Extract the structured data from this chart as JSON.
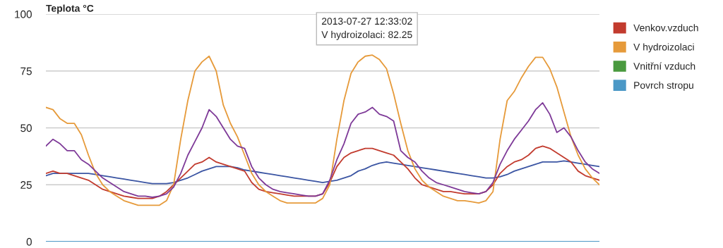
{
  "chart_data": {
    "type": "line",
    "title": "Teplota °C",
    "categories": [
      null,
      null,
      null,
      null,
      null,
      null,
      null,
      null,
      null,
      null,
      null,
      null,
      null,
      null,
      null,
      null,
      null,
      null,
      null,
      null,
      null,
      null,
      null,
      null,
      null,
      null,
      null,
      null,
      null,
      null,
      null,
      null,
      null,
      null,
      null,
      null,
      null,
      null,
      null,
      null,
      null,
      null,
      null,
      null,
      null,
      null,
      null,
      null,
      null,
      null,
      null,
      null,
      null,
      null,
      null,
      null,
      null,
      null,
      null,
      null,
      null,
      null,
      null,
      null,
      null,
      null,
      null,
      null,
      null,
      null,
      null,
      null,
      null,
      null,
      null,
      null,
      null,
      null,
      null
    ],
    "series": [
      {
        "color": "#3b55a3",
        "values": [
          29,
          30,
          30,
          30,
          30,
          30,
          30,
          29.5,
          29,
          28.5,
          28,
          27.5,
          27,
          26.5,
          26,
          25.5,
          25.5,
          25.5,
          26,
          27,
          28,
          29.5,
          31,
          32,
          33,
          33,
          33,
          32.5,
          31.5,
          31,
          30.5,
          30,
          29.5,
          29,
          28.5,
          28,
          27.5,
          27,
          26.5,
          26,
          26.5,
          27,
          28,
          29,
          31,
          32,
          33.5,
          34.5,
          35,
          34.5,
          34,
          33.5,
          33,
          32.5,
          32,
          31.5,
          31,
          30.5,
          30,
          29.5,
          29,
          28.5,
          28,
          28,
          28.5,
          29.5,
          31,
          32,
          33,
          34,
          35,
          35,
          35,
          35.5,
          35,
          34.5,
          34,
          33.5,
          33
        ]
      },
      {
        "name": "Venkov.vzduch",
        "color": "#c23b2e",
        "values": [
          30,
          31,
          30,
          30,
          29,
          28,
          27,
          25,
          23,
          22,
          21,
          20,
          19.5,
          19,
          19,
          19,
          20,
          22,
          25,
          28,
          31,
          34,
          35,
          37,
          35,
          34,
          33,
          32,
          31,
          26,
          23,
          22,
          21.5,
          21,
          20.5,
          20,
          20,
          20,
          20,
          21,
          26,
          33,
          37,
          39,
          40,
          41,
          41,
          40,
          39,
          38,
          35,
          32,
          28,
          25,
          24,
          23,
          22,
          22,
          21.5,
          21,
          21,
          21,
          22,
          25,
          30,
          33,
          35,
          36,
          38,
          41,
          42,
          41,
          39,
          37,
          35,
          31,
          29,
          28,
          27
        ]
      },
      {
        "name": "V hydroizolaci",
        "color": "#e69a3a",
        "values": [
          59,
          58,
          54,
          52,
          52,
          47,
          38,
          30,
          25,
          22,
          20,
          18,
          17,
          16,
          16,
          16,
          16,
          18,
          25,
          45,
          62,
          75,
          79,
          81.5,
          75,
          60,
          52,
          46,
          38,
          30,
          25,
          22,
          20,
          18,
          17,
          17,
          17,
          17,
          17,
          19,
          25,
          45,
          62,
          74,
          79,
          81.5,
          82,
          80,
          76,
          65,
          52,
          40,
          32,
          27,
          24,
          22,
          20,
          19,
          18,
          18,
          17.5,
          17,
          18,
          22,
          45,
          62,
          66,
          72,
          77,
          81,
          81,
          76,
          68,
          57,
          46,
          38,
          32,
          28,
          25
        ]
      },
      {
        "name": "Vnitřní vzduch",
        "color": "#4a9a3f",
        "values": [
          null,
          null,
          null,
          null,
          null,
          null,
          null,
          null,
          null,
          null,
          null,
          null,
          null,
          null,
          null,
          null,
          null,
          null,
          null,
          null,
          null,
          null,
          null,
          null,
          null,
          null,
          null,
          null,
          null,
          null,
          null,
          null,
          null,
          null,
          null,
          null,
          null,
          null,
          null,
          null,
          null,
          null,
          null,
          null,
          null,
          null,
          null,
          null,
          null,
          null,
          null,
          null,
          null,
          null,
          null,
          null,
          null,
          null,
          null,
          null,
          null,
          null,
          null,
          null,
          null,
          null,
          null,
          null,
          null,
          null,
          null,
          null,
          null,
          null,
          null,
          null,
          null,
          null,
          null
        ]
      },
      {
        "color": "#7e3a98",
        "values": [
          42,
          45,
          43,
          40,
          40,
          36,
          34,
          31,
          28,
          26,
          24,
          22,
          21,
          20,
          20,
          19.5,
          20,
          21,
          24,
          30,
          38,
          44,
          50,
          58,
          55,
          50,
          45,
          42,
          41,
          33,
          28,
          25,
          23,
          22,
          21.5,
          21,
          20.5,
          20,
          20,
          21,
          27,
          36,
          43,
          52,
          56,
          57,
          59,
          56,
          55,
          53,
          40,
          37,
          35,
          31,
          28,
          26,
          25,
          24,
          23,
          22,
          21.5,
          21,
          22,
          26,
          34,
          40,
          45,
          49,
          53,
          58,
          61,
          56,
          48,
          50,
          46,
          40,
          35,
          32,
          30
        ]
      },
      {
        "name": "Povrch stropu",
        "color": "#4b98c6",
        "values": [
          0,
          0,
          0,
          0,
          0,
          0,
          0,
          0,
          0,
          0,
          0,
          0,
          0,
          0,
          0,
          0,
          0,
          0,
          0,
          0,
          0,
          0,
          0,
          0,
          0,
          0,
          0,
          0,
          0,
          0,
          0,
          0,
          0,
          0,
          0,
          0,
          0,
          0,
          0,
          0,
          0,
          0,
          0,
          0,
          0,
          0,
          0,
          0,
          0,
          0,
          0,
          0,
          0,
          0,
          0,
          0,
          0,
          0,
          0,
          0,
          0,
          0,
          0,
          0,
          0,
          0,
          0,
          0,
          0,
          0,
          0,
          0,
          0,
          0,
          0,
          0,
          0,
          0,
          0
        ]
      }
    ],
    "ylim": [
      0,
      100
    ],
    "yticks": [
      0,
      25,
      50,
      75,
      100
    ],
    "grid": "y",
    "legend": "right",
    "tick_labels": "y",
    "marker": "none",
    "line_style": "solid",
    "annotations": [
      "2013-07-27 12:33:02\nV hydroizolaci: 82.25"
    ]
  }
}
